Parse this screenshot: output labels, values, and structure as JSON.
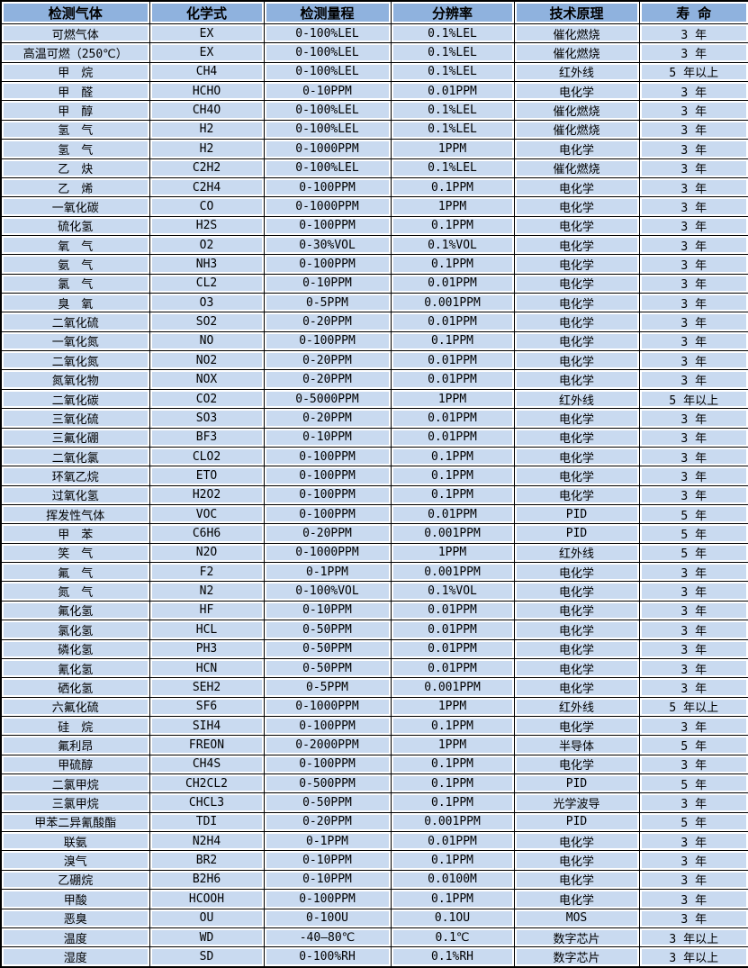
{
  "colors": {
    "header_bg": "#8FB2DE",
    "row_bg": "#C9DAF0",
    "grid": "#000000"
  },
  "table": {
    "columns": [
      "检测气体",
      "化学式",
      "检测量程",
      "分辨率",
      "技术原理",
      "寿 命"
    ],
    "column_keys": [
      "gas",
      "formula",
      "range",
      "resolution",
      "principle",
      "lifespan"
    ],
    "rows": [
      [
        "可燃气体",
        "EX",
        "0-100%LEL",
        "0.1%LEL",
        "催化燃烧",
        "3 年"
      ],
      [
        "高温可燃（250℃）",
        "EX",
        "0-100%LEL",
        "0.1%LEL",
        "催化燃烧",
        "3 年"
      ],
      [
        "甲　烷",
        "CH4",
        "0-100%LEL",
        "0.1%LEL",
        "红外线",
        "5 年以上"
      ],
      [
        "甲　醛",
        "HCHO",
        "0-10PPM",
        "0.01PPM",
        "电化学",
        "3 年"
      ],
      [
        "甲　醇",
        "CH4O",
        "0-100%LEL",
        "0.1%LEL",
        "催化燃烧",
        "3 年"
      ],
      [
        "氢　气",
        "H2",
        "0-100%LEL",
        "0.1%LEL",
        "催化燃烧",
        "3 年"
      ],
      [
        "氢　气",
        "H2",
        "0-1000PPM",
        "1PPM",
        "电化学",
        "3 年"
      ],
      [
        "乙　炔",
        "C2H2",
        "0-100%LEL",
        "0.1%LEL",
        "催化燃烧",
        "3 年"
      ],
      [
        "乙　烯",
        "C2H4",
        "0-100PPM",
        "0.1PPM",
        "电化学",
        "3 年"
      ],
      [
        "一氧化碳",
        "CO",
        "0-1000PPM",
        "1PPM",
        "电化学",
        "3 年"
      ],
      [
        "硫化氢",
        "H2S",
        "0-100PPM",
        "0.1PPM",
        "电化学",
        "3 年"
      ],
      [
        "氧　气",
        "O2",
        "0-30%VOL",
        "0.1%VOL",
        "电化学",
        "3 年"
      ],
      [
        "氨　气",
        "NH3",
        "0-100PPM",
        "0.1PPM",
        "电化学",
        "3 年"
      ],
      [
        "氯　气",
        "CL2",
        "0-10PPM",
        "0.01PPM",
        "电化学",
        "3 年"
      ],
      [
        "臭　氧",
        "O3",
        "0-5PPM",
        "0.001PPM",
        "电化学",
        "3 年"
      ],
      [
        "二氧化硫",
        "SO2",
        "0-20PPM",
        "0.01PPM",
        "电化学",
        "3 年"
      ],
      [
        "一氧化氮",
        "NO",
        "0-100PPM",
        "0.1PPM",
        "电化学",
        "3 年"
      ],
      [
        "二氧化氮",
        "NO2",
        "0-20PPM",
        "0.01PPM",
        "电化学",
        "3 年"
      ],
      [
        "氮氧化物",
        "NOX",
        "0-20PPM",
        "0.01PPM",
        "电化学",
        "3 年"
      ],
      [
        "二氧化碳",
        "CO2",
        "0-5000PPM",
        "1PPM",
        "红外线",
        "5 年以上"
      ],
      [
        "三氧化硫",
        "SO3",
        "0-20PPM",
        "0.01PPM",
        "电化学",
        "3 年"
      ],
      [
        "三氟化硼",
        "BF3",
        "0-10PPM",
        "0.01PPM",
        "电化学",
        "3 年"
      ],
      [
        "二氧化氯",
        "CLO2",
        "0-100PPM",
        "0.1PPM",
        "电化学",
        "3 年"
      ],
      [
        "环氧乙烷",
        "ETO",
        "0-100PPM",
        "0.1PPM",
        "电化学",
        "3 年"
      ],
      [
        "过氧化氢",
        "H2O2",
        "0-100PPM",
        "0.1PPM",
        "电化学",
        "3 年"
      ],
      [
        "挥发性气体",
        "VOC",
        "0-100PPM",
        "0.01PPM",
        "PID",
        "5 年"
      ],
      [
        "甲　苯",
        "C6H6",
        "0-20PPM",
        "0.001PPM",
        "PID",
        "5 年"
      ],
      [
        "笑　气",
        "N2O",
        "0-1000PPM",
        "1PPM",
        "红外线",
        "5 年"
      ],
      [
        "氟　气",
        "F2",
        "0-1PPM",
        "0.001PPM",
        "电化学",
        "3 年"
      ],
      [
        "氮　气",
        "N2",
        "0-100%VOL",
        "0.1%VOL",
        "电化学",
        "3 年"
      ],
      [
        "氟化氢",
        "HF",
        "0-10PPM",
        "0.01PPM",
        "电化学",
        "3 年"
      ],
      [
        "氯化氢",
        "HCL",
        "0-50PPM",
        "0.01PPM",
        "电化学",
        "3 年"
      ],
      [
        "磷化氢",
        "PH3",
        "0-50PPM",
        "0.01PPM",
        "电化学",
        "3 年"
      ],
      [
        "氰化氢",
        "HCN",
        "0-50PPM",
        "0.01PPM",
        "电化学",
        "3 年"
      ],
      [
        "硒化氢",
        "SEH2",
        "0-5PPM",
        "0.001PPM",
        "电化学",
        "3 年"
      ],
      [
        "六氟化硫",
        "SF6",
        "0-1000PPM",
        "1PPM",
        "红外线",
        "5 年以上"
      ],
      [
        "硅　烷",
        "SIH4",
        "0-100PPM",
        "0.1PPM",
        "电化学",
        "3 年"
      ],
      [
        "氟利昂",
        "FREON",
        "0-2000PPM",
        "1PPM",
        "半导体",
        "5 年"
      ],
      [
        "甲硫醇",
        "CH4S",
        "0-100PPM",
        "0.1PPM",
        "电化学",
        "3 年"
      ],
      [
        "二氯甲烷",
        "CH2CL2",
        "0-500PPM",
        "0.1PPM",
        "PID",
        "5 年"
      ],
      [
        "三氯甲烷",
        "CHCL3",
        "0-50PPM",
        "0.1PPM",
        "光学波导",
        "3 年"
      ],
      [
        "甲苯二异氰酸酯",
        "TDI",
        "0-20PPM",
        "0.001PPM",
        "PID",
        "5 年"
      ],
      [
        "联氨",
        "N2H4",
        "0-1PPM",
        "0.01PPM",
        "电化学",
        "3 年"
      ],
      [
        "溴气",
        "BR2",
        "0-10PPM",
        "0.1PPM",
        "电化学",
        "3 年"
      ],
      [
        "乙硼烷",
        "B2H6",
        "0-10PPM",
        "0.0100M",
        "电化学",
        "3 年"
      ],
      [
        "甲酸",
        "HCOOH",
        "0-100PPM",
        "0.1PPM",
        "电化学",
        "3 年"
      ],
      [
        "恶臭",
        "OU",
        "0-10OU",
        "0.1OU",
        "MOS",
        "3 年"
      ],
      [
        "温度",
        "WD",
        "-40—80℃",
        "0.1℃",
        "数字芯片",
        "3 年以上"
      ],
      [
        "湿度",
        "SD",
        "0-100%RH",
        "0.1%RH",
        "数字芯片",
        "3 年以上"
      ]
    ]
  }
}
